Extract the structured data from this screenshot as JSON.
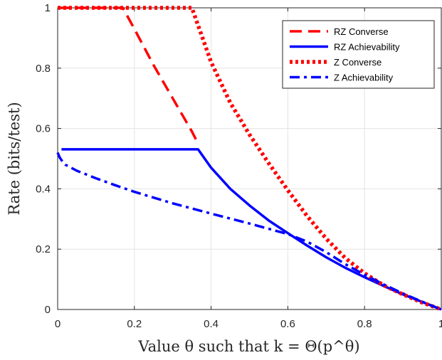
{
  "chart_data": {
    "type": "line",
    "xlabel": "Value θ such that k = Θ(p^θ)",
    "ylabel": "Rate (bits/test)",
    "xlim": [
      0,
      1
    ],
    "ylim": [
      0,
      1
    ],
    "xticks": [
      "0",
      "0.2",
      "0.4",
      "0.6",
      "0.8",
      "1"
    ],
    "yticks": [
      "0",
      "0.2",
      "0.4",
      "0.6",
      "0.8",
      "1"
    ],
    "grid": true,
    "legend_position": "top-right",
    "series": [
      {
        "name": "RZ Converse",
        "color": "#ff0000",
        "style": "dashed",
        "x": [
          0,
          0.17,
          0.2,
          0.25,
          0.3,
          0.35,
          0.366
        ],
        "y": [
          1,
          1,
          0.93,
          0.81,
          0.7,
          0.59,
          0.55
        ]
      },
      {
        "name": "RZ Achievability",
        "color": "#0000ff",
        "style": "solid",
        "x": [
          0.01,
          0.366,
          0.4,
          0.45,
          0.5,
          0.55,
          0.6,
          0.65,
          0.7,
          0.75,
          0.8,
          0.85,
          0.9,
          0.95,
          1.0
        ],
        "y": [
          0.531,
          0.531,
          0.47,
          0.4,
          0.345,
          0.295,
          0.253,
          0.212,
          0.173,
          0.138,
          0.107,
          0.078,
          0.05,
          0.025,
          0.0
        ]
      },
      {
        "name": "Z Converse",
        "color": "#ff0000",
        "style": "dotted",
        "x": [
          0,
          0.35,
          0.4,
          0.45,
          0.5,
          0.55,
          0.6,
          0.65,
          0.7,
          0.75,
          0.8,
          0.85,
          0.9,
          0.95,
          1.0
        ],
        "y": [
          1,
          1,
          0.82,
          0.685,
          0.58,
          0.485,
          0.395,
          0.31,
          0.235,
          0.17,
          0.12,
          0.08,
          0.05,
          0.023,
          0.0
        ]
      },
      {
        "name": "Z Achievability",
        "color": "#0000ff",
        "style": "dashdot",
        "x": [
          0,
          0.005,
          0.01,
          0.02,
          0.05,
          0.1,
          0.15,
          0.2,
          0.3,
          0.4,
          0.5,
          0.6,
          0.65,
          0.7,
          0.75,
          0.8,
          0.85,
          0.9,
          0.95,
          1.0
        ],
        "y": [
          0.52,
          0.505,
          0.495,
          0.48,
          0.46,
          0.435,
          0.412,
          0.39,
          0.352,
          0.318,
          0.285,
          0.25,
          0.225,
          0.19,
          0.15,
          0.115,
          0.083,
          0.053,
          0.026,
          0.0
        ]
      }
    ]
  }
}
